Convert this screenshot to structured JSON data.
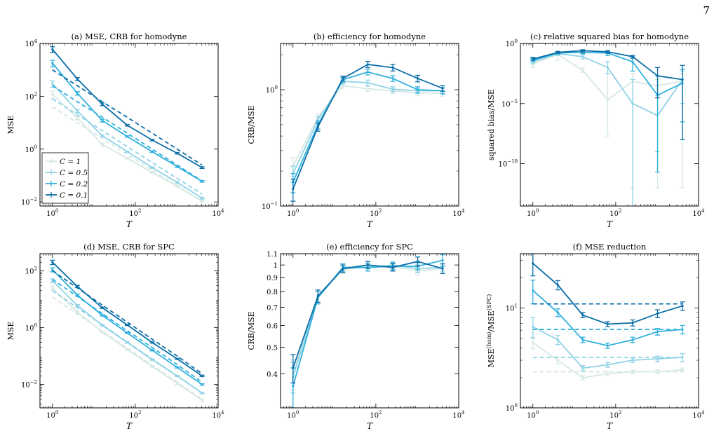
{
  "page_number": "7",
  "colors": [
    "#d6e8e3",
    "#8ed2e6",
    "#2fb0dd",
    "#0a6ea8"
  ],
  "legend": {
    "entries": [
      "C = 1",
      "C = 0.5",
      "C = 0.2",
      "C = 0.1"
    ]
  },
  "chart_data": [
    {
      "id": "a",
      "type": "line",
      "title": "(a) MSE, CRB for homodyne",
      "xlabel": "T",
      "ylabel": "MSE",
      "xscale": "log",
      "yscale": "log",
      "xlim": [
        0.5,
        10000
      ],
      "ylim": [
        0.007,
        10000
      ],
      "xticks": [
        1,
        100,
        10000
      ],
      "xtick_labels": [
        "10^0",
        "10^2",
        "10^4"
      ],
      "yticks": [
        0.01,
        1,
        100,
        10000
      ],
      "ytick_labels": [
        "10^-2",
        "10^0",
        "10^2",
        "10^4"
      ],
      "x": [
        1,
        4,
        16,
        64,
        256,
        1024,
        4096
      ],
      "legend_position": "bottom-left",
      "series": [
        {
          "name": "C = 1",
          "values": [
            120,
            15,
            1.5,
            0.45,
            0.13,
            0.04,
            0.011
          ],
          "errors": [
            40,
            2,
            0.2,
            0.03,
            0.008,
            0.003,
            0.001
          ],
          "crb": [
            40,
            10,
            2.5,
            0.62,
            0.16,
            0.04,
            0.01
          ]
        },
        {
          "name": "C = 0.5",
          "values": [
            300,
            28,
            3.2,
            0.8,
            0.2,
            0.055,
            0.014
          ],
          "errors": [
            80,
            4,
            0.3,
            0.05,
            0.01,
            0.004,
            0.001
          ],
          "crb": [
            80,
            20,
            5,
            1.25,
            0.31,
            0.078,
            0.02
          ]
        },
        {
          "name": "C = 0.2",
          "values": [
            1800,
            130,
            12,
            3,
            0.8,
            0.22,
            0.06
          ],
          "errors": [
            500,
            20,
            1.5,
            0.2,
            0.05,
            0.015,
            0.004
          ],
          "crb": [
            250,
            62,
            16,
            4,
            1,
            0.25,
            0.062
          ]
        },
        {
          "name": "C = 0.1",
          "values": [
            6000,
            450,
            50,
            8,
            2.2,
            0.7,
            0.2
          ],
          "errors": [
            1500,
            60,
            6,
            0.6,
            0.15,
            0.05,
            0.015
          ],
          "crb": [
            1000,
            250,
            62,
            16,
            4,
            1,
            0.25
          ]
        }
      ]
    },
    {
      "id": "b",
      "type": "line",
      "title": "(b) efficiency for homodyne",
      "xlabel": "T",
      "ylabel": "CRB/MSE",
      "xscale": "log",
      "yscale": "log",
      "xlim": [
        0.5,
        10000
      ],
      "ylim": [
        0.1,
        2.5
      ],
      "xticks": [
        1,
        100,
        10000
      ],
      "xtick_labels": [
        "10^0",
        "10^2",
        "10^4"
      ],
      "yticks": [
        0.1,
        1
      ],
      "ytick_labels": [
        "10^-1",
        "10^0"
      ],
      "x": [
        1,
        4,
        16,
        64,
        256,
        1024,
        4096
      ],
      "series": [
        {
          "name": "C = 1",
          "values": [
            0.22,
            0.58,
            1.08,
            1.02,
            0.98,
            0.94,
            0.93
          ],
          "errors": [
            0.04,
            0.04,
            0.05,
            0.05,
            0.05,
            0.05,
            0.05
          ]
        },
        {
          "name": "C = 0.5",
          "values": [
            0.19,
            0.55,
            1.18,
            1.15,
            1.01,
            0.98,
            0.98
          ],
          "errors": [
            0.03,
            0.04,
            0.06,
            0.06,
            0.05,
            0.05,
            0.05
          ]
        },
        {
          "name": "C = 0.2",
          "values": [
            0.16,
            0.5,
            1.22,
            1.42,
            1.25,
            1.0,
            0.98
          ],
          "errors": [
            0.03,
            0.04,
            0.06,
            0.08,
            0.07,
            0.06,
            0.06
          ]
        },
        {
          "name": "C = 0.1",
          "values": [
            0.14,
            0.48,
            1.25,
            1.65,
            1.55,
            1.25,
            1.03
          ],
          "errors": [
            0.03,
            0.04,
            0.06,
            0.1,
            0.1,
            0.08,
            0.06
          ]
        }
      ]
    },
    {
      "id": "c",
      "type": "line",
      "title": "(c) relative squared bias for homodyne",
      "xlabel": "T",
      "ylabel": "squared bias/MSE",
      "xscale": "log",
      "yscale": "log",
      "xlim": [
        0.5,
        10000
      ],
      "ylim": [
        3e-14,
        1
      ],
      "xticks": [
        1,
        100,
        10000
      ],
      "xtick_labels": [
        "10^0",
        "10^2",
        "10^4"
      ],
      "yticks": [
        1,
        1e-05,
        1e-10
      ],
      "ytick_labels": [
        "10^0",
        "10^-5",
        "10^-10"
      ],
      "x": [
        1,
        4,
        16,
        64,
        256,
        1024,
        4096
      ],
      "series": [
        {
          "name": "C = 1",
          "values": [
            0.02,
            0.12,
            0.006,
            2e-05,
            0.0007,
            0.0003,
            0.0008
          ],
          "errors_low": [
            0.01,
            0.04,
            0.004,
            2e-08,
            1e-12,
            1e-12,
            1e-12
          ],
          "errors_high": [
            0.03,
            0.16,
            0.009,
            0.003,
            0.003,
            0.001,
            0.003
          ]
        },
        {
          "name": "C = 0.5",
          "values": [
            0.03,
            0.14,
            0.08,
            0.01,
            1e-05,
            1e-06,
            0.001
          ],
          "errors_low": [
            0.02,
            0.1,
            0.05,
            0.003,
            3e-14,
            1e-09,
            1e-05
          ],
          "errors_high": [
            0.05,
            0.2,
            0.12,
            0.03,
            0.001,
            5e-05,
            0.005
          ]
        },
        {
          "name": "C = 0.2",
          "values": [
            0.04,
            0.16,
            0.18,
            0.16,
            0.03,
            5e-05,
            0.0005
          ],
          "errors_low": [
            0.03,
            0.13,
            0.14,
            0.1,
            0.005,
            2e-11,
            3e-07
          ],
          "errors_high": [
            0.06,
            0.2,
            0.22,
            0.22,
            0.08,
            0.002,
            0.007
          ]
        },
        {
          "name": "C = 0.1",
          "values": [
            0.05,
            0.18,
            0.25,
            0.2,
            0.08,
            0.002,
            0.001
          ],
          "errors_low": [
            0.04,
            0.15,
            0.2,
            0.15,
            0.06,
            3e-05,
            1e-08
          ],
          "errors_high": [
            0.07,
            0.22,
            0.3,
            0.25,
            0.1,
            0.01,
            0.015
          ]
        }
      ]
    },
    {
      "id": "d",
      "type": "line",
      "title": "(d) MSE, CRB for SPC",
      "xlabel": "T",
      "ylabel": "MSE",
      "xscale": "log",
      "yscale": "log",
      "xlim": [
        0.5,
        10000
      ],
      "ylim": [
        0.0015,
        400
      ],
      "xticks": [
        1,
        100,
        10000
      ],
      "xtick_labels": [
        "10^0",
        "10^2",
        "10^4"
      ],
      "yticks": [
        0.01,
        1,
        100
      ],
      "ytick_labels": [
        "10^-2",
        "10^0",
        "10^2"
      ],
      "x": [
        1,
        4,
        16,
        64,
        256,
        1024,
        4096
      ],
      "series": [
        {
          "name": "C = 1",
          "values": [
            25,
            3.5,
            0.7,
            0.17,
            0.043,
            0.011,
            0.0028
          ],
          "errors": [
            4,
            0.3,
            0.04,
            0.01,
            0.003,
            0.001,
            0.0003
          ],
          "crb": [
            12,
            3,
            0.75,
            0.19,
            0.047,
            0.012,
            0.003
          ]
        },
        {
          "name": "C = 0.5",
          "values": [
            45,
            6,
            1.2,
            0.3,
            0.075,
            0.02,
            0.005
          ],
          "errors": [
            7,
            0.5,
            0.06,
            0.015,
            0.004,
            0.001,
            0.0003
          ],
          "crb": [
            20,
            5,
            1.25,
            0.31,
            0.078,
            0.02,
            0.005
          ]
        },
        {
          "name": "C = 0.2",
          "values": [
            110,
            14,
            2.7,
            0.65,
            0.16,
            0.04,
            0.01
          ],
          "errors": [
            18,
            1.2,
            0.15,
            0.03,
            0.008,
            0.002,
            0.0006
          ],
          "crb": [
            50,
            12.5,
            3.1,
            0.78,
            0.2,
            0.05,
            0.012
          ]
        },
        {
          "name": "C = 0.1",
          "values": [
            200,
            28,
            5,
            1.25,
            0.3,
            0.08,
            0.02
          ],
          "errors": [
            35,
            2.5,
            0.3,
            0.06,
            0.015,
            0.004,
            0.0012
          ],
          "crb": [
            100,
            25,
            6.2,
            1.56,
            0.39,
            0.1,
            0.024
          ]
        }
      ]
    },
    {
      "id": "e",
      "type": "line",
      "title": "(e) efficiency for SPC",
      "xlabel": "T",
      "ylabel": "CRB/MSE",
      "xscale": "log",
      "yscale": "log",
      "xlim": [
        0.5,
        10000
      ],
      "ylim": [
        0.3,
        1.1
      ],
      "xticks": [
        1,
        100,
        10000
      ],
      "xtick_labels": [
        "10^0",
        "10^2",
        "10^4"
      ],
      "yticks": [
        0.4,
        0.5,
        0.6,
        0.7,
        0.8,
        0.9,
        1,
        1.1
      ],
      "ytick_labels": [
        "0.4",
        "0.5",
        "0.6",
        "0.7",
        "0.8",
        "0.9",
        "1",
        "1.1"
      ],
      "x": [
        1,
        4,
        16,
        64,
        256,
        1024,
        4096
      ],
      "series": [
        {
          "name": "C = 1",
          "values": [
            0.4,
            0.77,
            0.96,
            0.99,
            0.99,
            0.95,
            0.97
          ],
          "errors": [
            0.05,
            0.04,
            0.03,
            0.03,
            0.03,
            0.03,
            0.03
          ]
        },
        {
          "name": "C = 0.5",
          "values": [
            0.39,
            0.76,
            0.97,
            0.98,
            1.0,
            0.97,
            0.98
          ],
          "errors": [
            0.05,
            0.04,
            0.03,
            0.03,
            0.03,
            0.03,
            0.03
          ]
        },
        {
          "name": "C = 0.2",
          "values": [
            0.36,
            0.76,
            0.98,
            0.98,
            0.99,
            0.99,
            1.04
          ],
          "errors": [
            0.06,
            0.04,
            0.03,
            0.03,
            0.03,
            0.03,
            0.05
          ]
        },
        {
          "name": "C = 0.1",
          "values": [
            0.42,
            0.77,
            0.97,
            1.0,
            0.98,
            1.03,
            0.97
          ],
          "errors": [
            0.05,
            0.04,
            0.03,
            0.03,
            0.03,
            0.04,
            0.04
          ]
        }
      ]
    },
    {
      "id": "f",
      "type": "line",
      "title": "(f) MSE reduction",
      "xlabel": "T",
      "ylabel": "MSE(hom)/MSE(SPC)",
      "xscale": "log",
      "yscale": "log",
      "xlim": [
        0.5,
        10000
      ],
      "ylim": [
        1,
        35
      ],
      "xticks": [
        1,
        100,
        10000
      ],
      "xtick_labels": [
        "10^0",
        "10^2",
        "10^4"
      ],
      "yticks": [
        1,
        10
      ],
      "ytick_labels": [
        "10^0",
        "10^1"
      ],
      "x": [
        1,
        4,
        16,
        64,
        256,
        1024,
        4096
      ],
      "series": [
        {
          "name": "C = 1",
          "values": [
            4.5,
            3.0,
            2.0,
            2.2,
            2.3,
            2.3,
            2.4
          ],
          "errors": [
            0.6,
            0.25,
            0.1,
            0.1,
            0.1,
            0.1,
            0.1
          ],
          "asymptote": 2.3
        },
        {
          "name": "C = 0.5",
          "values": [
            6.5,
            4.8,
            2.5,
            2.7,
            3.0,
            3.1,
            3.2
          ],
          "errors": [
            1.5,
            0.5,
            0.15,
            0.15,
            0.15,
            0.2,
            0.3
          ],
          "asymptote": 3.2
        },
        {
          "name": "C = 0.2",
          "values": [
            15,
            9,
            4.8,
            4.2,
            4.8,
            5.8,
            6.1
          ],
          "errors": [
            4,
            0.8,
            0.3,
            0.25,
            0.3,
            0.45,
            0.6
          ],
          "asymptote": 6.1
        },
        {
          "name": "C = 0.1",
          "values": [
            28,
            17,
            8.5,
            6.9,
            7.1,
            8.8,
            10.5
          ],
          "errors": [
            7,
            1.8,
            0.5,
            0.4,
            0.5,
            0.8,
            1.0
          ],
          "asymptote": 11
        }
      ]
    }
  ]
}
